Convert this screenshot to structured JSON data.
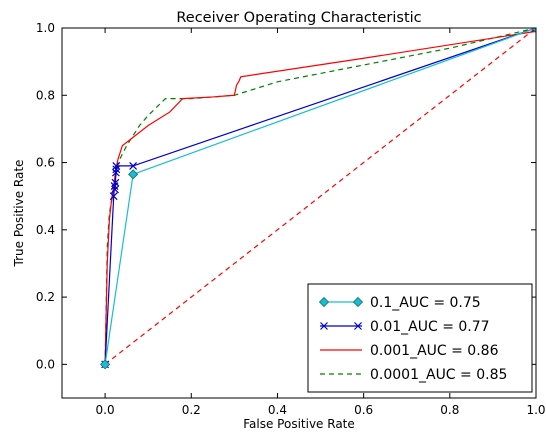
{
  "chart_data": {
    "type": "line",
    "title": "Receiver Operating Characteristic",
    "xlabel": "False Positive Rate",
    "ylabel": "True Positive Rate",
    "xlim": [
      -0.1,
      1.0
    ],
    "ylim": [
      -0.1,
      1.0
    ],
    "xticks": [
      "0.0",
      "0.2",
      "0.4",
      "0.6",
      "0.8",
      "1.0"
    ],
    "yticks": [
      "0.0",
      "0.2",
      "0.4",
      "0.6",
      "0.8",
      "1.0"
    ],
    "grid": false,
    "legend_position": "lower-right",
    "series": [
      {
        "name": "0.1_AUC = 0.75",
        "color": "#17becf",
        "style": "solid",
        "marker": "diamond",
        "x": [
          0.0,
          0.065,
          1.0
        ],
        "y": [
          0.0,
          0.565,
          1.0
        ]
      },
      {
        "name": "0.01_AUC = 0.77",
        "color": "#0000cc",
        "style": "solid",
        "marker": "x",
        "x": [
          0.0,
          0.02,
          0.022,
          0.023,
          0.024,
          0.025,
          0.026,
          0.026,
          0.065,
          1.0
        ],
        "y": [
          0.0,
          0.5,
          0.53,
          0.52,
          0.54,
          0.57,
          0.58,
          0.59,
          0.59,
          1.0
        ]
      },
      {
        "name": "0.001_AUC = 0.86",
        "color": "#ff0000",
        "style": "solid",
        "marker": "none",
        "x": [
          0.0,
          0.005,
          0.01,
          0.015,
          0.02,
          0.025,
          0.03,
          0.04,
          0.06,
          0.1,
          0.15,
          0.18,
          0.25,
          0.3,
          0.305,
          0.31,
          0.315,
          0.6,
          1.0
        ],
        "y": [
          0.0,
          0.3,
          0.43,
          0.49,
          0.53,
          0.58,
          0.61,
          0.65,
          0.67,
          0.71,
          0.75,
          0.79,
          0.795,
          0.8,
          0.83,
          0.84,
          0.855,
          0.91,
          0.99
        ]
      },
      {
        "name": "0.0001_AUC = 0.85",
        "color": "#008000",
        "style": "dashed",
        "marker": "none",
        "x": [
          0.0,
          0.005,
          0.01,
          0.02,
          0.03,
          0.05,
          0.08,
          0.1,
          0.14,
          0.2,
          0.3,
          0.4,
          0.6,
          0.8,
          1.0
        ],
        "y": [
          0.0,
          0.35,
          0.45,
          0.52,
          0.6,
          0.65,
          0.71,
          0.74,
          0.79,
          0.79,
          0.8,
          0.84,
          0.89,
          0.94,
          1.0
        ]
      },
      {
        "name": "",
        "color": "#ff0000",
        "style": "dashed",
        "marker": "none",
        "x": [
          0.0,
          1.0
        ],
        "y": [
          0.0,
          1.0
        ]
      }
    ]
  }
}
